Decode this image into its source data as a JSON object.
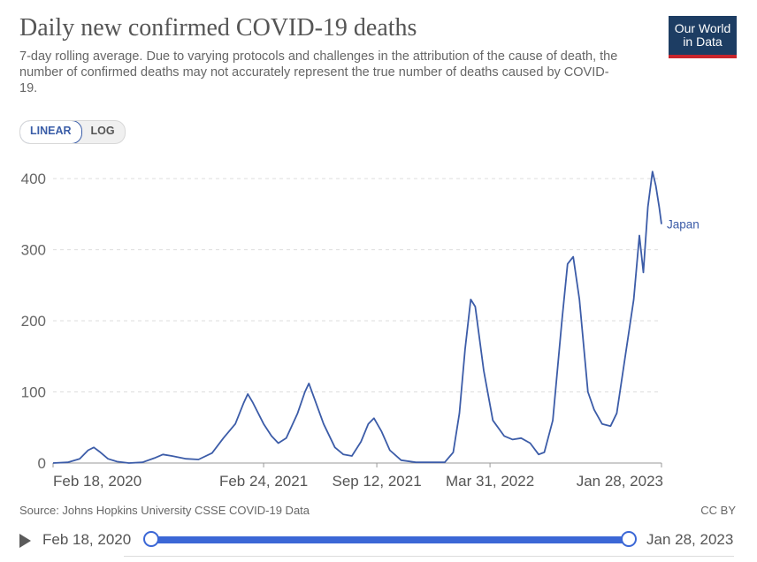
{
  "header": {
    "title": "Daily new confirmed COVID-19 deaths",
    "subtitle": "7-day rolling average. Due to varying protocols and challenges in the attribution of the cause of death, the number of confirmed deaths may not accurately represent the true number of deaths caused by COVID-19.",
    "logo_line1": "Our World",
    "logo_line2": "in Data"
  },
  "controls": {
    "linear_label": "LINEAR",
    "log_label": "LOG",
    "active": "linear"
  },
  "footer": {
    "source": "Source: Johns Hopkins University CSSE COVID-19 Data",
    "license": "CC BY"
  },
  "timeline": {
    "start_label": "Feb 18, 2020",
    "end_label": "Jan 28, 2023"
  },
  "colors": {
    "series": "#3c5ca8",
    "grid": "#dddddd",
    "axis_text": "#666666"
  },
  "chart_data": {
    "type": "line",
    "title": "Daily new confirmed COVID-19 deaths",
    "ylim": [
      0,
      425
    ],
    "yticks": [
      0,
      100,
      200,
      300,
      400
    ],
    "xlim": [
      "2020-02-18",
      "2023-01-28"
    ],
    "xticks": [
      {
        "date": "2020-02-18",
        "label": "Feb 18, 2020"
      },
      {
        "date": "2021-02-24",
        "label": "Feb 24, 2021"
      },
      {
        "date": "2021-09-12",
        "label": "Sep 12, 2021"
      },
      {
        "date": "2022-03-31",
        "label": "Mar 31, 2022"
      },
      {
        "date": "2023-01-28",
        "label": "Jan 28, 2023"
      }
    ],
    "grid": "horizontal dashed",
    "series": [
      {
        "name": "Japan",
        "color": "#3c5ca8",
        "points": [
          [
            "2020-02-18",
            0
          ],
          [
            "2020-03-15",
            1
          ],
          [
            "2020-04-05",
            6
          ],
          [
            "2020-04-20",
            18
          ],
          [
            "2020-04-30",
            22
          ],
          [
            "2020-05-10",
            16
          ],
          [
            "2020-05-25",
            6
          ],
          [
            "2020-06-10",
            2
          ],
          [
            "2020-07-01",
            0
          ],
          [
            "2020-07-25",
            1
          ],
          [
            "2020-08-15",
            7
          ],
          [
            "2020-08-30",
            12
          ],
          [
            "2020-09-15",
            10
          ],
          [
            "2020-10-10",
            6
          ],
          [
            "2020-11-01",
            5
          ],
          [
            "2020-11-25",
            14
          ],
          [
            "2020-12-15",
            35
          ],
          [
            "2021-01-05",
            55
          ],
          [
            "2021-01-20",
            85
          ],
          [
            "2021-01-27",
            97
          ],
          [
            "2021-02-05",
            85
          ],
          [
            "2021-02-24",
            55
          ],
          [
            "2021-03-10",
            38
          ],
          [
            "2021-03-22",
            28
          ],
          [
            "2021-04-05",
            35
          ],
          [
            "2021-04-25",
            70
          ],
          [
            "2021-05-08",
            100
          ],
          [
            "2021-05-15",
            112
          ],
          [
            "2021-05-25",
            90
          ],
          [
            "2021-06-10",
            55
          ],
          [
            "2021-06-30",
            22
          ],
          [
            "2021-07-15",
            12
          ],
          [
            "2021-07-30",
            10
          ],
          [
            "2021-08-15",
            30
          ],
          [
            "2021-08-28",
            55
          ],
          [
            "2021-09-07",
            63
          ],
          [
            "2021-09-20",
            45
          ],
          [
            "2021-10-05",
            18
          ],
          [
            "2021-10-25",
            4
          ],
          [
            "2021-11-20",
            1
          ],
          [
            "2022-01-10",
            1
          ],
          [
            "2022-01-25",
            15
          ],
          [
            "2022-02-05",
            70
          ],
          [
            "2022-02-15",
            160
          ],
          [
            "2022-02-25",
            230
          ],
          [
            "2022-03-05",
            220
          ],
          [
            "2022-03-20",
            130
          ],
          [
            "2022-04-05",
            60
          ],
          [
            "2022-04-25",
            38
          ],
          [
            "2022-05-10",
            33
          ],
          [
            "2022-05-25",
            35
          ],
          [
            "2022-06-10",
            28
          ],
          [
            "2022-06-25",
            12
          ],
          [
            "2022-07-05",
            15
          ],
          [
            "2022-07-20",
            60
          ],
          [
            "2022-08-05",
            200
          ],
          [
            "2022-08-15",
            280
          ],
          [
            "2022-08-25",
            290
          ],
          [
            "2022-09-05",
            230
          ],
          [
            "2022-09-20",
            100
          ],
          [
            "2022-10-01",
            75
          ],
          [
            "2022-10-15",
            55
          ],
          [
            "2022-10-30",
            52
          ],
          [
            "2022-11-10",
            70
          ],
          [
            "2022-11-25",
            150
          ],
          [
            "2022-12-10",
            230
          ],
          [
            "2022-12-20",
            320
          ],
          [
            "2022-12-27",
            268
          ],
          [
            "2023-01-04",
            360
          ],
          [
            "2023-01-12",
            410
          ],
          [
            "2023-01-18",
            390
          ],
          [
            "2023-01-24",
            360
          ],
          [
            "2023-01-28",
            336
          ]
        ]
      }
    ]
  }
}
